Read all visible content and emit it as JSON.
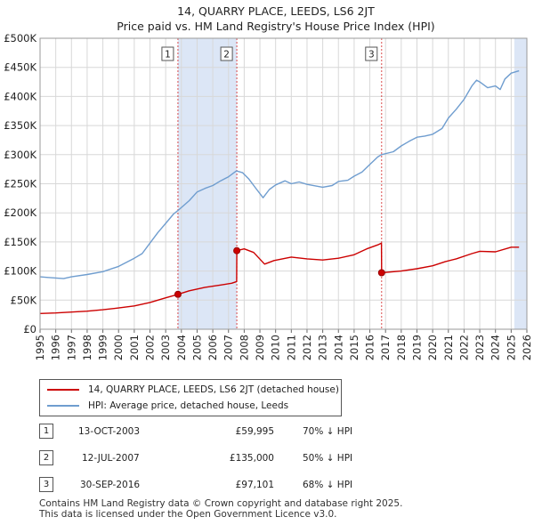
{
  "chart_data": {
    "type": "line",
    "title": "14, QUARRY PLACE, LEEDS, LS6 2JT",
    "subtitle": "Price paid vs. HM Land Registry's House Price Index (HPI)",
    "x_ticks": [
      "1995",
      "1996",
      "1997",
      "1998",
      "1999",
      "2000",
      "2001",
      "2002",
      "2003",
      "2004",
      "2005",
      "2006",
      "2007",
      "2008",
      "2009",
      "2010",
      "2011",
      "2012",
      "2013",
      "2014",
      "2015",
      "2016",
      "2017",
      "2018",
      "2019",
      "2020",
      "2021",
      "2022",
      "2023",
      "2024",
      "2025",
      "2026"
    ],
    "y_ticks": [
      "£0",
      "£50K",
      "£100K",
      "£150K",
      "£200K",
      "£250K",
      "£300K",
      "£350K",
      "£400K",
      "£450K",
      "£500K"
    ],
    "xlim": [
      1995,
      2026
    ],
    "ylim": [
      0,
      500000
    ],
    "grid": true,
    "colors": {
      "property": "#cc0000",
      "hpi": "#6f9dcf",
      "shade": "#dce6f6",
      "marker_line": "#cc0000"
    },
    "series": [
      {
        "name": "14, QUARRY PLACE, LEEDS, LS6 2JT (detached house)",
        "color": "#cc0000",
        "points": [
          [
            1995.0,
            27000
          ],
          [
            1996.0,
            28000
          ],
          [
            1997.0,
            29500
          ],
          [
            1998.0,
            31000
          ],
          [
            1999.0,
            33500
          ],
          [
            2000.0,
            36500
          ],
          [
            2001.0,
            40000
          ],
          [
            2002.0,
            46000
          ],
          [
            2003.0,
            54000
          ],
          [
            2003.78,
            59995
          ],
          [
            2004.5,
            66000
          ],
          [
            2005.5,
            72000
          ],
          [
            2006.5,
            76000
          ],
          [
            2007.2,
            79000
          ],
          [
            2007.52,
            82000
          ],
          [
            2007.53,
            135000
          ],
          [
            2008.0,
            138000
          ],
          [
            2008.6,
            132000
          ],
          [
            2009.3,
            112000
          ],
          [
            2009.9,
            118000
          ],
          [
            2011.0,
            124000
          ],
          [
            2012.0,
            121000
          ],
          [
            2013.0,
            119000
          ],
          [
            2014.0,
            122000
          ],
          [
            2015.0,
            128000
          ],
          [
            2015.8,
            138000
          ],
          [
            2016.5,
            145000
          ],
          [
            2016.74,
            148000
          ],
          [
            2016.75,
            97101
          ],
          [
            2018.0,
            100000
          ],
          [
            2019.0,
            104000
          ],
          [
            2020.0,
            109000
          ],
          [
            2020.8,
            116000
          ],
          [
            2021.5,
            121000
          ],
          [
            2022.5,
            130000
          ],
          [
            2023.0,
            134000
          ],
          [
            2024.0,
            133000
          ],
          [
            2025.0,
            141000
          ],
          [
            2025.5,
            141000
          ]
        ]
      },
      {
        "name": "HPI: Average price, detached house, Leeds",
        "color": "#6f9dcf",
        "points": [
          [
            1995.0,
            90000
          ],
          [
            1995.5,
            89000
          ],
          [
            1996.0,
            88000
          ],
          [
            1996.5,
            87000
          ],
          [
            1997.0,
            90000
          ],
          [
            1998.0,
            94000
          ],
          [
            1999.0,
            99000
          ],
          [
            2000.0,
            108000
          ],
          [
            2001.0,
            122000
          ],
          [
            2001.5,
            130000
          ],
          [
            2002.0,
            148000
          ],
          [
            2002.5,
            166000
          ],
          [
            2003.0,
            182000
          ],
          [
            2003.5,
            198000
          ],
          [
            2003.78,
            204000
          ],
          [
            2004.5,
            221000
          ],
          [
            2005.0,
            236000
          ],
          [
            2005.5,
            242000
          ],
          [
            2006.0,
            247000
          ],
          [
            2006.5,
            255000
          ],
          [
            2007.0,
            262000
          ],
          [
            2007.5,
            272000
          ],
          [
            2007.9,
            269000
          ],
          [
            2008.3,
            258000
          ],
          [
            2008.8,
            240000
          ],
          [
            2009.2,
            226000
          ],
          [
            2009.6,
            240000
          ],
          [
            2010.0,
            248000
          ],
          [
            2010.6,
            255000
          ],
          [
            2011.0,
            250000
          ],
          [
            2011.5,
            253000
          ],
          [
            2012.0,
            249000
          ],
          [
            2013.0,
            244000
          ],
          [
            2013.6,
            247000
          ],
          [
            2014.0,
            254000
          ],
          [
            2014.6,
            256000
          ],
          [
            2015.0,
            263000
          ],
          [
            2015.5,
            270000
          ],
          [
            2016.0,
            283000
          ],
          [
            2016.5,
            296000
          ],
          [
            2016.74,
            300000
          ],
          [
            2017.5,
            305000
          ],
          [
            2018.0,
            315000
          ],
          [
            2018.5,
            323000
          ],
          [
            2019.0,
            330000
          ],
          [
            2019.5,
            332000
          ],
          [
            2020.0,
            335000
          ],
          [
            2020.6,
            345000
          ],
          [
            2021.0,
            363000
          ],
          [
            2021.5,
            378000
          ],
          [
            2022.0,
            395000
          ],
          [
            2022.5,
            418000
          ],
          [
            2022.8,
            428000
          ],
          [
            2023.0,
            425000
          ],
          [
            2023.5,
            415000
          ],
          [
            2024.0,
            418000
          ],
          [
            2024.3,
            412000
          ],
          [
            2024.6,
            430000
          ],
          [
            2025.0,
            440000
          ],
          [
            2025.5,
            444000
          ]
        ]
      }
    ],
    "shaded_regions": [
      [
        2003.78,
        2007.53
      ],
      [
        2025.2,
        2026.0
      ]
    ],
    "markers": [
      {
        "label": "1",
        "x": 2003.78,
        "y": 59995
      },
      {
        "label": "2",
        "x": 2007.53,
        "y": 135000
      },
      {
        "label": "3",
        "x": 2016.75,
        "y": 97101
      }
    ]
  },
  "legend": {
    "property": "14, QUARRY PLACE, LEEDS, LS6 2JT (detached house)",
    "hpi": "HPI: Average price, detached house, Leeds"
  },
  "transactions": [
    {
      "num": "1",
      "date": "13-OCT-2003",
      "price": "£59,995",
      "hpi": "70% ↓ HPI"
    },
    {
      "num": "2",
      "date": "12-JUL-2007",
      "price": "£135,000",
      "hpi": "50% ↓ HPI"
    },
    {
      "num": "3",
      "date": "30-SEP-2016",
      "price": "£97,101",
      "hpi": "68% ↓ HPI"
    }
  ],
  "footer": {
    "line1": "Contains HM Land Registry data © Crown copyright and database right 2025.",
    "line2": "This data is licensed under the Open Government Licence v3.0."
  }
}
